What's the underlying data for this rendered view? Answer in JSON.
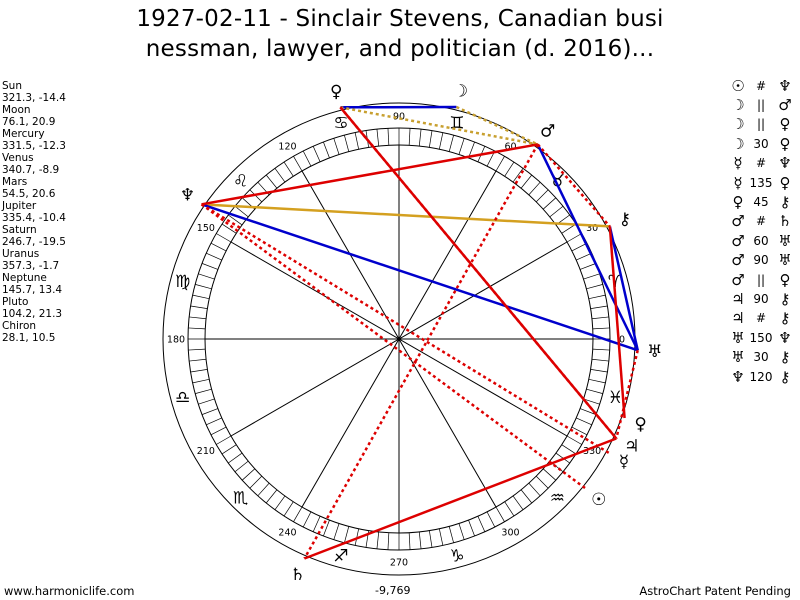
{
  "title": {
    "line1": "1927-02-11 - Sinclair Stevens, Canadian busi",
    "line2": "nessman, lawyer, and politician (d. 2016)..."
  },
  "planets": [
    {
      "name": "Sun",
      "coords": "321.3, -14.4"
    },
    {
      "name": "Moon",
      "coords": "76.1, 20.9"
    },
    {
      "name": "Mercury",
      "coords": "331.5, -12.3"
    },
    {
      "name": "Venus",
      "coords": "340.7, -8.9"
    },
    {
      "name": "Mars",
      "coords": "54.5, 20.6"
    },
    {
      "name": "Jupiter",
      "coords": "335.4, -10.4"
    },
    {
      "name": "Saturn",
      "coords": "246.7, -19.5"
    },
    {
      "name": "Uranus",
      "coords": "357.3, -1.7"
    },
    {
      "name": "Neptune",
      "coords": "145.7, 13.4"
    },
    {
      "name": "Pluto",
      "coords": "104.2, 21.3"
    },
    {
      "name": "Chiron",
      "coords": "28.1, 10.5"
    }
  ],
  "aspects": [
    {
      "a": "☉",
      "b": "#",
      "c": "♆"
    },
    {
      "a": "☽",
      "b": "||",
      "c": "♂"
    },
    {
      "a": "☽",
      "b": "||",
      "c": "♀"
    },
    {
      "a": "☽",
      "b": "30",
      "c": "♀"
    },
    {
      "a": "☿",
      "b": "#",
      "c": "♆"
    },
    {
      "a": "☿",
      "b": "135",
      "c": "♀"
    },
    {
      "a": "♀",
      "b": "45",
      "c": "⚷"
    },
    {
      "a": "♂",
      "b": "#",
      "c": "♄"
    },
    {
      "a": "♂",
      "b": "60",
      "c": "♅"
    },
    {
      "a": "♂",
      "b": "90",
      "c": "♅"
    },
    {
      "a": "♂",
      "b": "||",
      "c": "♀"
    },
    {
      "a": "♃",
      "b": "90",
      "c": "⚷"
    },
    {
      "a": "♃",
      "b": "#",
      "c": "⚷"
    },
    {
      "a": "♅",
      "b": "150",
      "c": "♆"
    },
    {
      "a": "♅",
      "b": "30",
      "c": "⚷"
    },
    {
      "a": "♆",
      "b": "120",
      "c": "⚷"
    }
  ],
  "wheel_labels": [
    "0",
    "30",
    "60",
    "90",
    "120",
    "150",
    "180",
    "210",
    "240",
    "270",
    "300",
    "330"
  ],
  "zodiac_signs": [
    "♈",
    "♉",
    "♊",
    "♋",
    "♌",
    "♍",
    "♎",
    "♏",
    "♐",
    "♑",
    "♒",
    "♓"
  ],
  "chart_planets": [
    {
      "name": "Sun",
      "glyph": "☉",
      "lon": 321.3
    },
    {
      "name": "Moon",
      "glyph": "☽",
      "lon": 76.1
    },
    {
      "name": "Mercury",
      "glyph": "☿",
      "lon": 331.5
    },
    {
      "name": "Venus",
      "glyph": "♀",
      "lon": 340.7
    },
    {
      "name": "Mars",
      "glyph": "♂",
      "lon": 54.5
    },
    {
      "name": "Jupiter",
      "glyph": "♃",
      "lon": 335.4
    },
    {
      "name": "Saturn",
      "glyph": "♄",
      "lon": 246.7
    },
    {
      "name": "Uranus",
      "glyph": "♅",
      "lon": 357.3
    },
    {
      "name": "Neptune",
      "glyph": "♆",
      "lon": 145.7
    },
    {
      "name": "Pluto",
      "glyph": "♀",
      "lon": 104.2
    },
    {
      "name": "Chiron",
      "glyph": "⚷",
      "lon": 28.1
    }
  ],
  "aspect_lines": [
    {
      "from": "Pluto",
      "to": "Moon",
      "color": "#0000cc",
      "dashed": false
    },
    {
      "from": "Pluto",
      "to": "Mars",
      "color": "#c8a030",
      "dashed": true
    },
    {
      "from": "Moon",
      "to": "Mars",
      "color": "#c8a030",
      "dashed": true
    },
    {
      "from": "Neptune",
      "to": "Chiron",
      "color": "#d4a020",
      "dashed": false
    },
    {
      "from": "Neptune",
      "to": "Uranus",
      "color": "#0000cc",
      "dashed": false
    },
    {
      "from": "Mars",
      "to": "Uranus",
      "color": "#0000cc",
      "dashed": false
    },
    {
      "from": "Chiron",
      "to": "Uranus",
      "color": "#0000cc",
      "dashed": false
    },
    {
      "from": "Mars",
      "to": "Neptune",
      "color": "#dd0000",
      "dashed": false
    },
    {
      "from": "Pluto",
      "to": "Jupiter",
      "color": "#dd0000",
      "dashed": false
    },
    {
      "from": "Saturn",
      "to": "Jupiter",
      "color": "#dd0000",
      "dashed": false
    },
    {
      "from": "Chiron",
      "to": "Venus",
      "color": "#dd0000",
      "dashed": false
    },
    {
      "from": "Mars",
      "to": "Saturn",
      "color": "#dd0000",
      "dashed": true
    },
    {
      "from": "Neptune",
      "to": "Mercury",
      "color": "#dd0000",
      "dashed": true
    },
    {
      "from": "Neptune",
      "to": "Sun",
      "color": "#dd0000",
      "dashed": true
    },
    {
      "from": "Mars",
      "to": "Chiron",
      "color": "#dd0000",
      "dashed": true
    },
    {
      "from": "Uranus",
      "to": "Jupiter",
      "color": "#dd0000",
      "dashed": true
    },
    {
      "from": "Pluto",
      "to": "Jupiter",
      "color": "#dd0000",
      "dashed": true
    }
  ],
  "footer": {
    "left": "www.harmoniclife.com",
    "center": "-9,769",
    "right": "AstroChart Patent Pending"
  }
}
